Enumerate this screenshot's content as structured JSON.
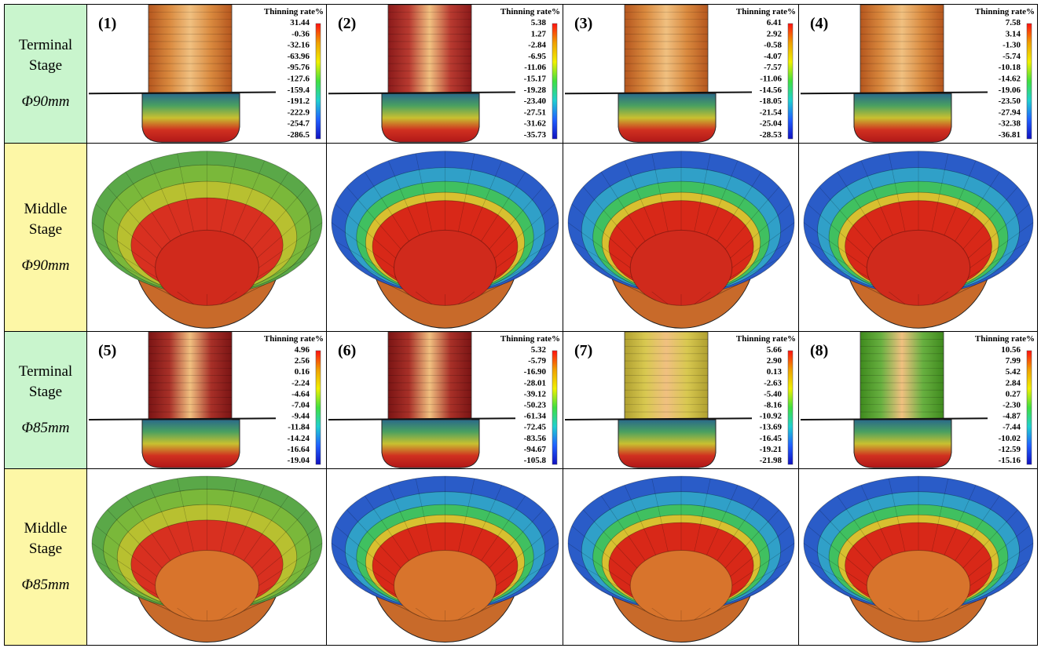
{
  "rows": [
    {
      "stage": "Terminal Stage",
      "diameter": "Φ90mm",
      "panels": [
        {
          "label": "(1)",
          "legend_title": "Thinning rate%",
          "legend_values": [
            "31.44",
            "-0.36",
            "-32.16",
            "-63.96",
            "-95.76",
            "-127.6",
            "-159.4",
            "-191.2",
            "-222.9",
            "-254.7",
            "-286.5"
          ]
        },
        {
          "label": "(2)",
          "legend_title": "Thinning rate%",
          "legend_values": [
            "5.38",
            "1.27",
            "-2.84",
            "-6.95",
            "-11.06",
            "-15.17",
            "-19.28",
            "-23.40",
            "-27.51",
            "-31.62",
            "-35.73"
          ]
        },
        {
          "label": "(3)",
          "legend_title": "Thinning rate%",
          "legend_values": [
            "6.41",
            "2.92",
            "-0.58",
            "-4.07",
            "-7.57",
            "-11.06",
            "-14.56",
            "-18.05",
            "-21.54",
            "-25.04",
            "-28.53"
          ]
        },
        {
          "label": "(4)",
          "legend_title": "Thinning rate%",
          "legend_values": [
            "7.58",
            "3.14",
            "-1.30",
            "-5.74",
            "-10.18",
            "-14.62",
            "-19.06",
            "-23.50",
            "-27.94",
            "-32.38",
            "-36.81"
          ]
        }
      ]
    },
    {
      "stage": "Middle Stage",
      "diameter": "Φ90mm"
    },
    {
      "stage": "Terminal Stage",
      "diameter": "Φ85mm",
      "panels": [
        {
          "label": "(5)",
          "legend_title": "Thinning rate%",
          "legend_values": [
            "4.96",
            "2.56",
            "0.16",
            "-2.24",
            "-4.64",
            "-7.04",
            "-9.44",
            "-11.84",
            "-14.24",
            "-16.64",
            "-19.04"
          ]
        },
        {
          "label": "(6)",
          "legend_title": "Thinning rate%",
          "legend_values": [
            "5.32",
            "-5.79",
            "-16.90",
            "-28.01",
            "-39.12",
            "-50.23",
            "-61.34",
            "-72.45",
            "-83.56",
            "-94.67",
            "-105.8"
          ]
        },
        {
          "label": "(7)",
          "legend_title": "Thinning rate%",
          "legend_values": [
            "5.66",
            "2.90",
            "0.13",
            "-2.63",
            "-5.40",
            "-8.16",
            "-10.92",
            "-13.69",
            "-16.45",
            "-19.21",
            "-21.98"
          ]
        },
        {
          "label": "(8)",
          "legend_title": "Thinning rate%",
          "legend_values": [
            "10.56",
            "7.99",
            "5.42",
            "2.84",
            "0.27",
            "-2.30",
            "-4.87",
            "-7.44",
            "-10.02",
            "-12.59",
            "-15.16"
          ]
        }
      ]
    },
    {
      "stage": "Middle Stage",
      "diameter": "Φ85mm"
    }
  ]
}
